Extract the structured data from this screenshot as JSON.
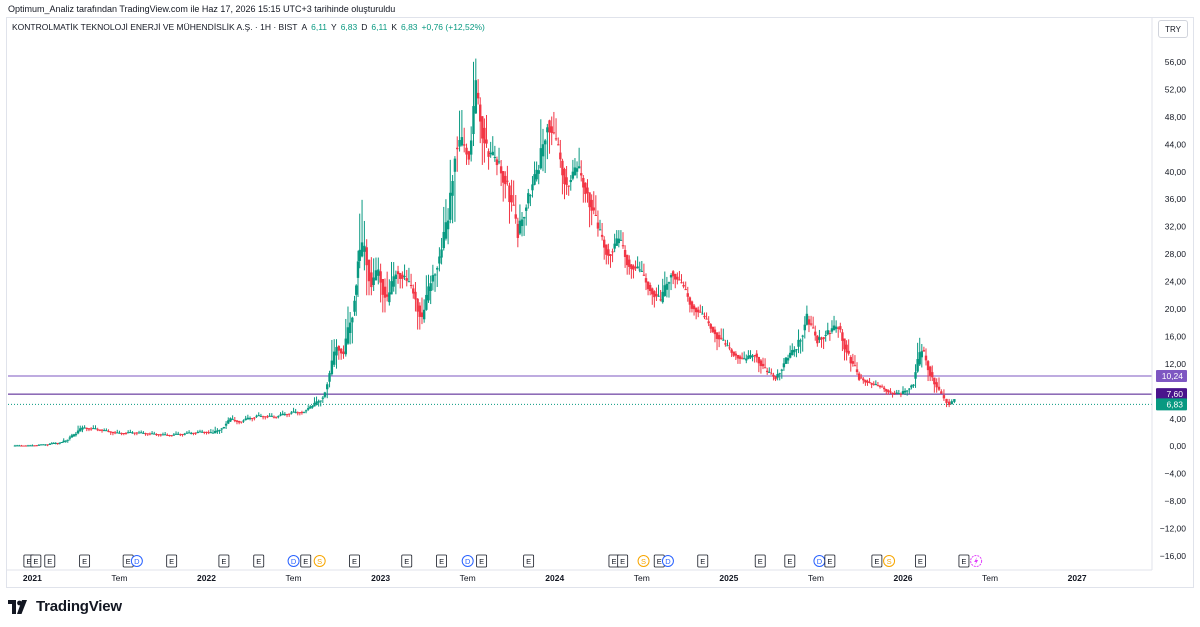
{
  "header": {
    "credit": "Optimum_Analiz tarafından TradingView.com ile Haz 17, 2026 15:15 UTC+3 tarihinde oluşturuldu",
    "symbol": "KONTROLMATİK TEKNOLOJİ ENERJİ VE MÜHENDİSLİK A.Ş. · 1H · BIST",
    "open_label": "A",
    "open": "6,11",
    "high_label": "Y",
    "high": "6,83",
    "low_label": "D",
    "low": "6,11",
    "close_label": "K",
    "close": "6,83",
    "change": "+0,76 (+12,52%)"
  },
  "currency_button": "TRY",
  "brand": {
    "name": "TradingView"
  },
  "colors": {
    "up": "#089981",
    "down": "#f23645",
    "line1": "#7e57c2",
    "line2": "#4a148c",
    "badge_current": "#089981"
  },
  "chart_data": {
    "type": "candlestick",
    "ylim": [
      -16,
      58
    ],
    "yticks": [
      56,
      52,
      48,
      44,
      40,
      36,
      32,
      28,
      24,
      20,
      16,
      12,
      8,
      4,
      0,
      -4,
      -8,
      -12,
      -16
    ],
    "ytick_labels": [
      "56,00",
      "52,00",
      "48,00",
      "44,00",
      "40,00",
      "36,00",
      "32,00",
      "28,00",
      "24,00",
      "20,00",
      "16,00",
      "12,00",
      "",
      "4,00",
      "0,00",
      "−4,00",
      "−8,00",
      "−12,00",
      "−16,00"
    ],
    "x_labels": [
      {
        "t": 2021.0,
        "label": "2021",
        "bold": true
      },
      {
        "t": 2021.5,
        "label": "Tem",
        "bold": false
      },
      {
        "t": 2022.0,
        "label": "2022",
        "bold": true
      },
      {
        "t": 2022.5,
        "label": "Tem",
        "bold": false
      },
      {
        "t": 2023.0,
        "label": "2023",
        "bold": true
      },
      {
        "t": 2023.5,
        "label": "Tem",
        "bold": false
      },
      {
        "t": 2024.0,
        "label": "2024",
        "bold": true
      },
      {
        "t": 2024.5,
        "label": "Tem",
        "bold": false
      },
      {
        "t": 2025.0,
        "label": "2025",
        "bold": true
      },
      {
        "t": 2025.5,
        "label": "Tem",
        "bold": false
      },
      {
        "t": 2026.0,
        "label": "2026",
        "bold": true
      },
      {
        "t": 2026.5,
        "label": "Tem",
        "bold": false
      },
      {
        "t": 2027.0,
        "label": "2027",
        "bold": true
      }
    ],
    "xlim": [
      2020.86,
      2027.43
    ],
    "horizontal_lines": [
      {
        "value": 10.24,
        "label": "10,24",
        "color": "#7e57c2"
      },
      {
        "value": 7.6,
        "label": "7,60",
        "color": "#4a148c"
      }
    ],
    "current_price": {
      "value": 6.83,
      "label": "6,83"
    },
    "event_markers": [
      {
        "t": 2020.98,
        "k": "E"
      },
      {
        "t": 2021.02,
        "k": "E"
      },
      {
        "t": 2021.1,
        "k": "E"
      },
      {
        "t": 2021.3,
        "k": "E"
      },
      {
        "t": 2021.55,
        "k": "E"
      },
      {
        "t": 2021.6,
        "k": "D"
      },
      {
        "t": 2021.8,
        "k": "E"
      },
      {
        "t": 2022.1,
        "k": "E"
      },
      {
        "t": 2022.3,
        "k": "E"
      },
      {
        "t": 2022.5,
        "k": "D"
      },
      {
        "t": 2022.57,
        "k": "E"
      },
      {
        "t": 2022.65,
        "k": "S"
      },
      {
        "t": 2022.85,
        "k": "E"
      },
      {
        "t": 2023.15,
        "k": "E"
      },
      {
        "t": 2023.35,
        "k": "E"
      },
      {
        "t": 2023.5,
        "k": "D"
      },
      {
        "t": 2023.58,
        "k": "E"
      },
      {
        "t": 2023.85,
        "k": "E"
      },
      {
        "t": 2024.34,
        "k": "E"
      },
      {
        "t": 2024.39,
        "k": "E"
      },
      {
        "t": 2024.51,
        "k": "S"
      },
      {
        "t": 2024.6,
        "k": "E"
      },
      {
        "t": 2024.65,
        "k": "D"
      },
      {
        "t": 2024.85,
        "k": "E"
      },
      {
        "t": 2025.18,
        "k": "E"
      },
      {
        "t": 2025.35,
        "k": "E"
      },
      {
        "t": 2025.52,
        "k": "D"
      },
      {
        "t": 2025.58,
        "k": "E"
      },
      {
        "t": 2025.85,
        "k": "E"
      },
      {
        "t": 2025.92,
        "k": "S"
      },
      {
        "t": 2026.1,
        "k": "E"
      },
      {
        "t": 2026.35,
        "k": "E"
      },
      {
        "t": 2026.42,
        "k": "L"
      }
    ],
    "ohlc": [
      [
        2020.9,
        0.1,
        0.2,
        0.0,
        0.1
      ],
      [
        2021.0,
        0.1,
        0.3,
        0.0,
        0.3
      ],
      [
        2021.1,
        0.3,
        0.6,
        0.2,
        0.6
      ],
      [
        2021.18,
        0.6,
        1.8,
        0.5,
        1.6
      ],
      [
        2021.25,
        1.6,
        3.0,
        1.4,
        2.7
      ],
      [
        2021.3,
        2.7,
        3.5,
        2.2,
        2.4
      ],
      [
        2021.4,
        2.4,
        2.6,
        1.6,
        1.9
      ],
      [
        2021.5,
        1.9,
        2.4,
        1.6,
        2.0
      ],
      [
        2021.6,
        2.0,
        2.3,
        1.5,
        1.8
      ],
      [
        2021.7,
        1.8,
        2.1,
        1.4,
        1.6
      ],
      [
        2021.8,
        1.6,
        2.2,
        1.4,
        1.9
      ],
      [
        2021.9,
        1.9,
        2.4,
        1.6,
        2.1
      ],
      [
        2022.0,
        2.1,
        2.5,
        1.7,
        1.9
      ],
      [
        2022.05,
        1.9,
        2.9,
        1.8,
        2.7
      ],
      [
        2022.1,
        2.7,
        4.2,
        2.5,
        3.9
      ],
      [
        2022.15,
        3.9,
        4.5,
        3.2,
        3.6
      ],
      [
        2022.2,
        3.6,
        4.6,
        3.3,
        4.4
      ],
      [
        2022.3,
        4.4,
        5.0,
        3.9,
        4.3
      ],
      [
        2022.4,
        4.3,
        5.2,
        4.0,
        4.9
      ],
      [
        2022.5,
        4.9,
        5.6,
        4.5,
        5.0
      ],
      [
        2022.56,
        5.0,
        6.0,
        4.8,
        5.8
      ],
      [
        2022.62,
        5.8,
        7.6,
        5.6,
        7.2
      ],
      [
        2022.68,
        7.2,
        11.0,
        7.0,
        10.5
      ],
      [
        2022.72,
        10.5,
        15.6,
        10.0,
        14.6
      ],
      [
        2022.76,
        14.6,
        15.2,
        12.6,
        13.4
      ],
      [
        2022.8,
        13.4,
        20.5,
        13.0,
        19.6
      ],
      [
        2022.85,
        19.6,
        28.5,
        19.0,
        27.0
      ],
      [
        2022.88,
        27.0,
        36.5,
        25.0,
        29.0
      ],
      [
        2022.92,
        29.0,
        32.5,
        22.0,
        23.5
      ],
      [
        2022.96,
        23.5,
        27.5,
        21.0,
        25.5
      ],
      [
        2023.0,
        25.5,
        29.0,
        19.5,
        21.0
      ],
      [
        2023.05,
        21.0,
        27.0,
        20.5,
        25.5
      ],
      [
        2023.1,
        25.5,
        28.0,
        23.0,
        24.5
      ],
      [
        2023.15,
        24.5,
        26.0,
        21.5,
        22.5
      ],
      [
        2023.2,
        22.5,
        24.5,
        17.0,
        18.5
      ],
      [
        2023.25,
        18.5,
        25.0,
        18.0,
        24.0
      ],
      [
        2023.3,
        24.0,
        29.0,
        22.5,
        27.5
      ],
      [
        2023.35,
        27.5,
        36.0,
        26.5,
        33.0
      ],
      [
        2023.4,
        33.0,
        46.5,
        32.5,
        43.5
      ],
      [
        2023.44,
        43.5,
        49.0,
        40.0,
        44.0
      ],
      [
        2023.48,
        44.0,
        47.0,
        41.0,
        42.5
      ],
      [
        2023.52,
        42.5,
        56.5,
        41.5,
        51.5
      ],
      [
        2023.56,
        51.5,
        53.5,
        41.0,
        43.0
      ],
      [
        2023.62,
        43.0,
        46.0,
        39.5,
        41.5
      ],
      [
        2023.68,
        41.5,
        43.5,
        35.5,
        38.0
      ],
      [
        2023.74,
        38.0,
        39.5,
        29.0,
        31.0
      ],
      [
        2023.8,
        31.0,
        37.5,
        30.0,
        36.5
      ],
      [
        2023.86,
        36.5,
        41.5,
        35.0,
        40.5
      ],
      [
        2023.92,
        40.5,
        50.0,
        39.5,
        47.5
      ],
      [
        2023.97,
        47.5,
        49.5,
        42.0,
        44.0
      ],
      [
        2024.02,
        44.0,
        45.0,
        36.0,
        38.0
      ],
      [
        2024.08,
        38.0,
        42.0,
        36.5,
        40.5
      ],
      [
        2024.14,
        40.5,
        43.5,
        35.5,
        37.0
      ],
      [
        2024.2,
        37.0,
        38.5,
        30.0,
        31.5
      ],
      [
        2024.26,
        31.5,
        33.0,
        26.5,
        28.0
      ],
      [
        2024.32,
        28.0,
        31.5,
        26.0,
        30.0
      ],
      [
        2024.38,
        30.0,
        31.5,
        25.0,
        26.5
      ],
      [
        2024.44,
        26.5,
        28.0,
        24.0,
        25.5
      ],
      [
        2024.5,
        25.5,
        27.0,
        22.0,
        23.0
      ],
      [
        2024.56,
        23.0,
        24.5,
        20.0,
        21.0
      ],
      [
        2024.62,
        21.0,
        26.5,
        20.5,
        25.5
      ],
      [
        2024.68,
        25.5,
        26.0,
        22.5,
        23.5
      ],
      [
        2024.74,
        23.5,
        24.0,
        19.5,
        20.5
      ],
      [
        2024.8,
        20.5,
        21.5,
        18.5,
        19.0
      ],
      [
        2024.86,
        19.0,
        19.5,
        16.5,
        17.0
      ],
      [
        2024.92,
        17.0,
        18.5,
        14.0,
        15.0
      ],
      [
        2024.98,
        15.0,
        15.5,
        13.0,
        13.5
      ],
      [
        2025.04,
        13.5,
        14.5,
        12.0,
        12.5
      ],
      [
        2025.1,
        12.5,
        14.0,
        11.5,
        13.5
      ],
      [
        2025.16,
        13.5,
        14.0,
        10.5,
        11.0
      ],
      [
        2025.22,
        11.0,
        11.5,
        9.5,
        10.0
      ],
      [
        2025.28,
        10.0,
        13.0,
        9.6,
        12.5
      ],
      [
        2025.34,
        12.5,
        15.0,
        12.0,
        14.5
      ],
      [
        2025.4,
        14.5,
        20.5,
        13.5,
        18.5
      ],
      [
        2025.46,
        18.5,
        19.0,
        14.5,
        15.5
      ],
      [
        2025.52,
        15.5,
        18.0,
        14.0,
        16.5
      ],
      [
        2025.58,
        16.5,
        19.0,
        15.0,
        17.5
      ],
      [
        2025.64,
        17.5,
        18.0,
        12.5,
        13.0
      ],
      [
        2025.7,
        13.0,
        13.5,
        9.5,
        10.0
      ],
      [
        2025.76,
        10.0,
        10.5,
        8.8,
        9.2
      ],
      [
        2025.82,
        9.2,
        9.6,
        8.4,
        8.7
      ],
      [
        2025.88,
        8.7,
        9.0,
        7.5,
        7.8
      ],
      [
        2025.94,
        7.8,
        8.2,
        7.0,
        7.6
      ],
      [
        2026.0,
        7.6,
        9.0,
        7.3,
        8.8
      ],
      [
        2026.06,
        8.8,
        15.8,
        8.5,
        14.0
      ],
      [
        2026.12,
        14.0,
        14.5,
        9.5,
        10.0
      ],
      [
        2026.18,
        10.0,
        10.3,
        7.8,
        8.0
      ],
      [
        2026.22,
        8.0,
        8.3,
        6.6,
        6.9
      ],
      [
        2026.25,
        6.9,
        7.2,
        5.7,
        6.1
      ],
      [
        2026.28,
        6.11,
        6.83,
        6.11,
        6.83
      ]
    ]
  }
}
